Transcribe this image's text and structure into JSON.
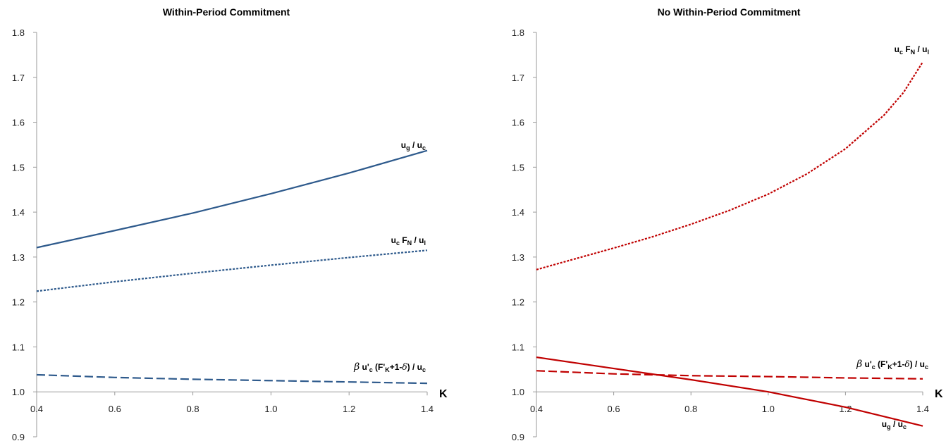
{
  "chart_data": [
    {
      "type": "line",
      "title": "Within-Period Commitment",
      "x_axis_label": "K",
      "xlim": [
        0.4,
        1.4
      ],
      "ylim": [
        0.9,
        1.8
      ],
      "x_ticks": [
        "0.4",
        "0.6",
        "0.8",
        "1.0",
        "1.2",
        "1.4"
      ],
      "y_ticks": [
        "0.9",
        "1.0",
        "1.1",
        "1.2",
        "1.3",
        "1.4",
        "1.5",
        "1.6",
        "1.7",
        "1.8"
      ],
      "x_axis_crosses_y_at": 1.0,
      "grid": false,
      "legend": "none (inline labels)",
      "series": [
        {
          "id": "ug_uc",
          "label_parts": [
            {
              "t": "u"
            },
            {
              "t": "g",
              "sub": true
            },
            {
              "t": " / u"
            },
            {
              "t": "c",
              "sub": true
            }
          ],
          "color": "#2E5A8C",
          "style": "solid",
          "x": [
            0.4,
            0.6,
            0.8,
            1.0,
            1.2,
            1.4
          ],
          "y": [
            1.321,
            1.359,
            1.398,
            1.441,
            1.487,
            1.537
          ]
        },
        {
          "id": "ucFN_ul",
          "label_parts": [
            {
              "t": "u"
            },
            {
              "t": "c",
              "sub": true
            },
            {
              "t": " F"
            },
            {
              "t": "N",
              "sub": true
            },
            {
              "t": " / u"
            },
            {
              "t": "l",
              "sub": true
            }
          ],
          "color": "#2E5A8C",
          "style": "dotted",
          "x": [
            0.4,
            0.6,
            0.8,
            1.0,
            1.2,
            1.4
          ],
          "y": [
            1.224,
            1.245,
            1.264,
            1.282,
            1.299,
            1.315
          ]
        },
        {
          "id": "euler",
          "label_parts": [
            {
              "t": "β",
              "beta": true
            },
            {
              "t": " u'"
            },
            {
              "t": "c",
              "sub": true
            },
            {
              "t": " (F'"
            },
            {
              "t": "K",
              "sub": true
            },
            {
              "t": "+1-"
            },
            {
              "t": "δ",
              "delta": true
            },
            {
              "t": ") / u"
            },
            {
              "t": "c",
              "sub": true
            }
          ],
          "color": "#2E5A8C",
          "style": "dashed",
          "x": [
            0.4,
            0.6,
            0.8,
            1.0,
            1.2,
            1.4
          ],
          "y": [
            1.038,
            1.032,
            1.028,
            1.025,
            1.022,
            1.019
          ]
        }
      ]
    },
    {
      "type": "line",
      "title": "No Within-Period Commitment",
      "x_axis_label": "K",
      "xlim": [
        0.4,
        1.4
      ],
      "ylim": [
        0.9,
        1.8
      ],
      "x_ticks": [
        "0.4",
        "0.6",
        "0.8",
        "1.0",
        "1.2",
        "1.4"
      ],
      "y_ticks": [
        "0.9",
        "1.0",
        "1.1",
        "1.2",
        "1.3",
        "1.4",
        "1.5",
        "1.6",
        "1.7",
        "1.8"
      ],
      "x_axis_crosses_y_at": 1.0,
      "grid": false,
      "legend": "none (inline labels)",
      "series": [
        {
          "id": "ucFN_ul",
          "label_parts": [
            {
              "t": "u"
            },
            {
              "t": "c",
              "sub": true
            },
            {
              "t": " F"
            },
            {
              "t": "N",
              "sub": true
            },
            {
              "t": " / u"
            },
            {
              "t": "l",
              "sub": true
            }
          ],
          "color": "#C00000",
          "style": "dotted",
          "x": [
            0.4,
            0.5,
            0.6,
            0.7,
            0.8,
            0.9,
            1.0,
            1.1,
            1.2,
            1.3,
            1.35,
            1.4
          ],
          "y": [
            1.272,
            1.296,
            1.32,
            1.345,
            1.373,
            1.404,
            1.44,
            1.485,
            1.541,
            1.616,
            1.666,
            1.734
          ]
        },
        {
          "id": "euler",
          "label_parts": [
            {
              "t": "β",
              "beta": true
            },
            {
              "t": " u'"
            },
            {
              "t": "c",
              "sub": true
            },
            {
              "t": " (F'"
            },
            {
              "t": "K",
              "sub": true
            },
            {
              "t": "+1-"
            },
            {
              "t": "δ",
              "delta": true
            },
            {
              "t": ") / u"
            },
            {
              "t": "c",
              "sub": true
            }
          ],
          "color": "#C00000",
          "style": "dashed",
          "x": [
            0.4,
            0.6,
            0.8,
            1.0,
            1.2,
            1.4
          ],
          "y": [
            1.047,
            1.04,
            1.036,
            1.034,
            1.031,
            1.029
          ]
        },
        {
          "id": "ug_uc",
          "label_parts": [
            {
              "t": "u"
            },
            {
              "t": "g",
              "sub": true
            },
            {
              "t": " / u"
            },
            {
              "t": "c",
              "sub": true
            }
          ],
          "color": "#C00000",
          "style": "solid",
          "x": [
            0.4,
            0.6,
            0.8,
            1.0,
            1.2,
            1.4
          ],
          "y": [
            1.077,
            1.052,
            1.027,
            1.0,
            0.966,
            0.924
          ]
        }
      ]
    }
  ]
}
